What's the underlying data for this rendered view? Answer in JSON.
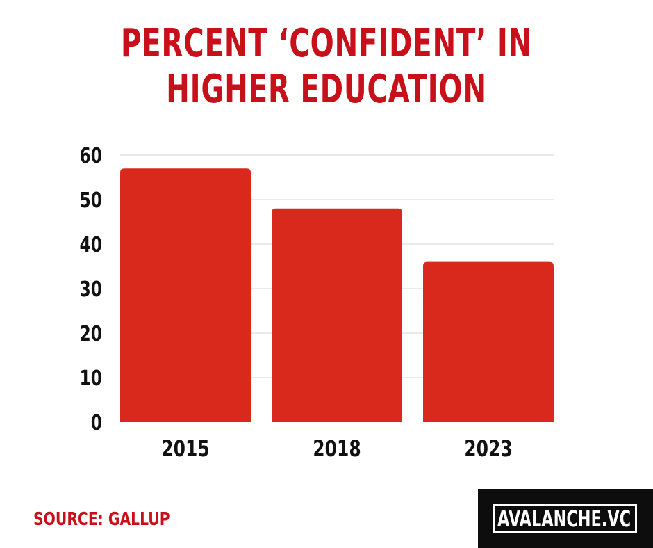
{
  "chart_data": {
    "type": "bar",
    "title_lines": [
      "PERCENT ‘CONFIDENT’ IN",
      "HIGHER EDUCATION"
    ],
    "categories": [
      "2015",
      "2018",
      "2023"
    ],
    "values": [
      57,
      48,
      36
    ],
    "ylim": [
      0,
      60
    ],
    "yticks": [
      0,
      10,
      20,
      30,
      40,
      50,
      60
    ],
    "grid": true,
    "bar_color": "#d9291c",
    "title_color": "#c8101a"
  },
  "source": "SOURCE: GALLUP",
  "brand": "AVALANCHE.VC"
}
